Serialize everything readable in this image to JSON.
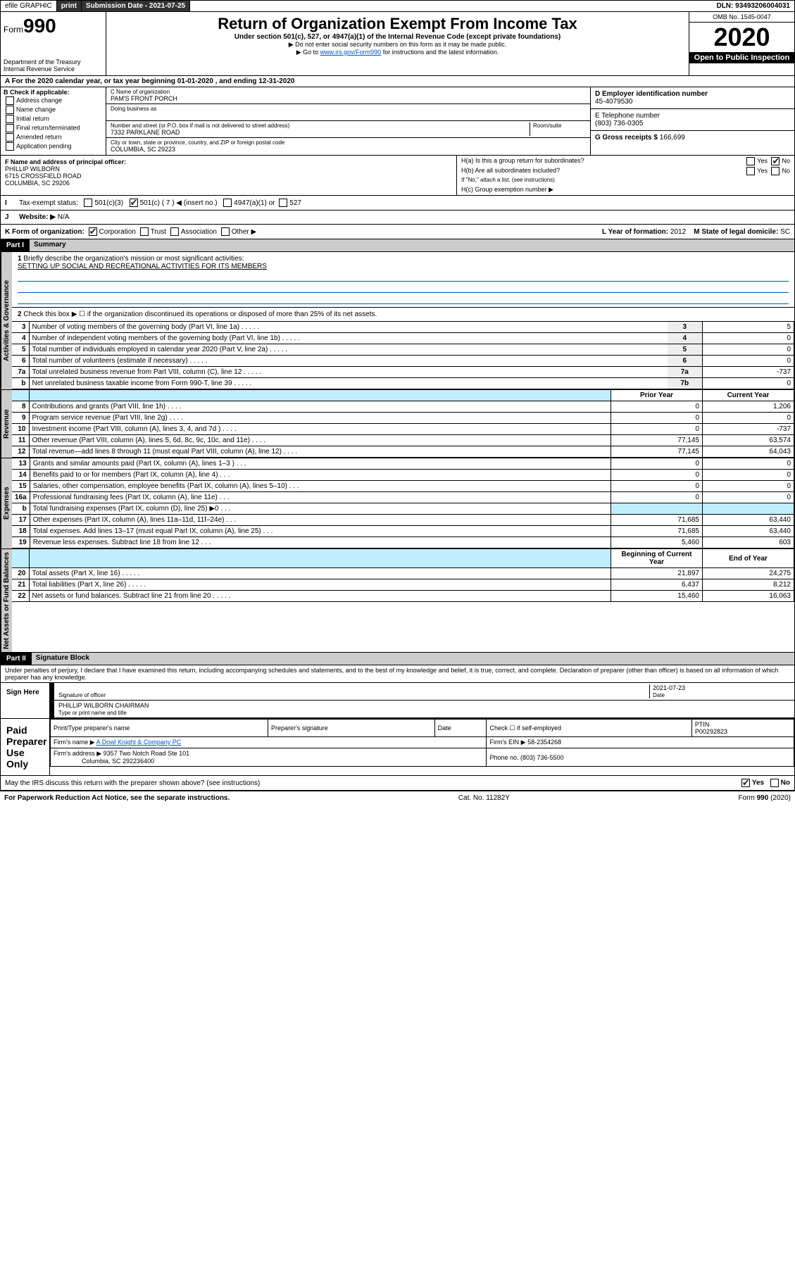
{
  "topbar": {
    "efile": "efile GRAPHIC",
    "print": "print",
    "sub_label": "Submission Date - 2021-07-25",
    "dln": "DLN: 93493206004031"
  },
  "header": {
    "form_word": "Form",
    "form_num": "990",
    "dept": "Department of the Treasury\nInternal Revenue Service",
    "title": "Return of Organization Exempt From Income Tax",
    "subtitle": "Under section 501(c), 527, or 4947(a)(1) of the Internal Revenue Code (except private foundations)",
    "note1": "▶ Do not enter social security numbers on this form as it may be made public.",
    "note2_pre": "▶ Go to ",
    "note2_link": "www.irs.gov/Form990",
    "note2_post": " for instructions and the latest information.",
    "omb": "OMB No. 1545-0047",
    "year": "2020",
    "open": "Open to Public Inspection"
  },
  "tax_year": "A For the 2020 calendar year, or tax year beginning 01-01-2020   , and ending 12-31-2020",
  "B": {
    "label": "B Check if applicable:",
    "opts": [
      "Address change",
      "Name change",
      "Initial return",
      "Final return/terminated",
      "Amended return",
      "Application pending"
    ]
  },
  "C": {
    "name_lbl": "C Name of organization",
    "name": "PAM'S FRONT PORCH",
    "dba_lbl": "Doing business as",
    "addr_lbl": "Number and street (or P.O. box if mail is not delivered to street address)",
    "room_lbl": "Room/suite",
    "addr": "7332 PARKLANE ROAD",
    "city_lbl": "City or town, state or province, country, and ZIP or foreign postal code",
    "city": "COLUMBIA, SC  29223"
  },
  "D": {
    "lbl": "D Employer identification number",
    "val": "45-4079530"
  },
  "E": {
    "lbl": "E Telephone number",
    "val": "(803) 736-0305"
  },
  "G": {
    "lbl": "G Gross receipts $",
    "val": "166,699"
  },
  "F": {
    "lbl": "F  Name and address of principal officer:",
    "name": "PHILLIP WILBORN",
    "addr1": "6715 CROSSFIELD ROAD",
    "addr2": "COLUMBIA, SC  29206"
  },
  "H": {
    "a": "H(a)  Is this a group return for subordinates?",
    "b": "H(b)  Are all subordinates included?",
    "b_note": "If \"No,\" attach a list. (see instructions)",
    "c": "H(c)  Group exemption number ▶",
    "yes": "Yes",
    "no": "No"
  },
  "I": {
    "lbl": "Tax-exempt status:",
    "o1": "501(c)(3)",
    "o2": "501(c) ( 7 ) ◀ (insert no.)",
    "o3": "4947(a)(1) or",
    "o4": "527"
  },
  "J": {
    "lbl": "Website: ▶",
    "val": "N/A"
  },
  "K": {
    "lbl": "K Form of organization:",
    "o1": "Corporation",
    "o2": "Trust",
    "o3": "Association",
    "o4": "Other ▶"
  },
  "L": {
    "lbl": "L Year of formation:",
    "val": "2012"
  },
  "M": {
    "lbl": "M State of legal domicile:",
    "val": "SC"
  },
  "part1": {
    "hdr": "Part I",
    "title": "Summary"
  },
  "mission": {
    "num": "1",
    "lbl": "Briefly describe the organization's mission or most significant activities:",
    "text": "SETTING UP SOCIAL AND RECREATIONAL ACTIVITIES FOR ITS MEMBERS"
  },
  "line2": "Check this box ▶ ☐  if the organization discontinued its operations or disposed of more than 25% of its net assets.",
  "vtabs": {
    "ag": "Activities & Governance",
    "rev": "Revenue",
    "exp": "Expenses",
    "na": "Net Assets or Fund Balances"
  },
  "gov_lines": [
    {
      "n": "3",
      "d": "Number of voting members of the governing body (Part VI, line 1a)",
      "c": "3",
      "v": "5"
    },
    {
      "n": "4",
      "d": "Number of independent voting members of the governing body (Part VI, line 1b)",
      "c": "4",
      "v": "0"
    },
    {
      "n": "5",
      "d": "Total number of individuals employed in calendar year 2020 (Part V, line 2a)",
      "c": "5",
      "v": "0"
    },
    {
      "n": "6",
      "d": "Total number of volunteers (estimate if necessary)",
      "c": "6",
      "v": "0"
    },
    {
      "n": "7a",
      "d": "Total unrelated business revenue from Part VIII, column (C), line 12",
      "c": "7a",
      "v": "-737"
    },
    {
      "n": "b",
      "d": "Net unrelated business taxable income from Form 990-T, line 39",
      "c": "7b",
      "v": "0"
    }
  ],
  "col_hdr": {
    "py": "Prior Year",
    "cy": "Current Year"
  },
  "rev_lines": [
    {
      "n": "8",
      "d": "Contributions and grants (Part VIII, line 1h)",
      "py": "0",
      "cy": "1,206"
    },
    {
      "n": "9",
      "d": "Program service revenue (Part VIII, line 2g)",
      "py": "0",
      "cy": "0"
    },
    {
      "n": "10",
      "d": "Investment income (Part VIII, column (A), lines 3, 4, and 7d )",
      "py": "0",
      "cy": "-737"
    },
    {
      "n": "11",
      "d": "Other revenue (Part VIII, column (A), lines 5, 6d, 8c, 9c, 10c, and 11e)",
      "py": "77,145",
      "cy": "63,574"
    },
    {
      "n": "12",
      "d": "Total revenue—add lines 8 through 11 (must equal Part VIII, column (A), line 12)",
      "py": "77,145",
      "cy": "64,043"
    }
  ],
  "exp_lines": [
    {
      "n": "13",
      "d": "Grants and similar amounts paid (Part IX, column (A), lines 1–3 )",
      "py": "0",
      "cy": "0"
    },
    {
      "n": "14",
      "d": "Benefits paid to or for members (Part IX, column (A), line 4)",
      "py": "0",
      "cy": "0"
    },
    {
      "n": "15",
      "d": "Salaries, other compensation, employee benefits (Part IX, column (A), lines 5–10)",
      "py": "0",
      "cy": "0"
    },
    {
      "n": "16a",
      "d": "Professional fundraising fees (Part IX, column (A), line 11e)",
      "py": "0",
      "cy": "0"
    },
    {
      "n": "b",
      "d": "Total fundraising expenses (Part IX, column (D), line 25) ▶0",
      "py": "",
      "cy": "",
      "shade": true
    },
    {
      "n": "17",
      "d": "Other expenses (Part IX, column (A), lines 11a–11d, 11f–24e)",
      "py": "71,685",
      "cy": "63,440"
    },
    {
      "n": "18",
      "d": "Total expenses. Add lines 13–17 (must equal Part IX, column (A), line 25)",
      "py": "71,685",
      "cy": "63,440"
    },
    {
      "n": "19",
      "d": "Revenue less expenses. Subtract line 18 from line 12",
      "py": "5,460",
      "cy": "603"
    }
  ],
  "na_hdr": {
    "b": "Beginning of Current Year",
    "e": "End of Year"
  },
  "na_lines": [
    {
      "n": "20",
      "d": "Total assets (Part X, line 16)",
      "py": "21,897",
      "cy": "24,275"
    },
    {
      "n": "21",
      "d": "Total liabilities (Part X, line 26)",
      "py": "6,437",
      "cy": "8,212"
    },
    {
      "n": "22",
      "d": "Net assets or fund balances. Subtract line 21 from line 20",
      "py": "15,460",
      "cy": "16,063"
    }
  ],
  "part2": {
    "hdr": "Part II",
    "title": "Signature Block"
  },
  "perjury": "Under penalties of perjury, I declare that I have examined this return, including accompanying schedules and statements, and to the best of my knowledge and belief, it is true, correct, and complete. Declaration of preparer (other than officer) is based on all information of which preparer has any knowledge.",
  "sign": {
    "here": "Sign Here",
    "date": "2021-07-23",
    "sig_lbl": "Signature of officer",
    "date_lbl": "Date",
    "name": "PHILLIP WILBORN  CHAIRMAN",
    "name_lbl": "Type or print name and title"
  },
  "paid": {
    "title": "Paid Preparer Use Only",
    "h1": "Print/Type preparer's name",
    "h2": "Preparer's signature",
    "h3": "Date",
    "h4": "Check ☐ if self-employed",
    "h5": "PTIN",
    "ptin": "P00292823",
    "firm_lbl": "Firm's name    ▶",
    "firm": "A Dowl Knight & Company PC",
    "ein_lbl": "Firm's EIN ▶",
    "ein": "58-2354268",
    "addr_lbl": "Firm's address ▶",
    "addr": "9357 Two Notch Road Ste 101",
    "addr2": "Columbia, SC  292236400",
    "phone_lbl": "Phone no.",
    "phone": "(803) 736-5500"
  },
  "discuss": "May the IRS discuss this return with the preparer shown above? (see instructions)",
  "footer": {
    "pra": "For Paperwork Reduction Act Notice, see the separate instructions.",
    "cat": "Cat. No. 11282Y",
    "form": "Form 990 (2020)"
  }
}
